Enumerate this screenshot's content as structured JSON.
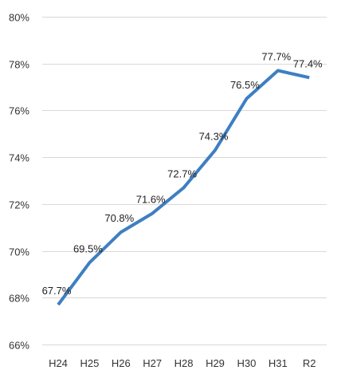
{
  "chart_data": {
    "type": "line",
    "title": "",
    "xlabel": "",
    "ylabel": "",
    "categories": [
      "H24",
      "H25",
      "H26",
      "H27",
      "H28",
      "H29",
      "H30",
      "H31",
      "R2"
    ],
    "series": [
      {
        "values": [
          67.7,
          69.5,
          70.8,
          71.6,
          72.7,
          74.3,
          76.5,
          77.7,
          77.4
        ],
        "data_labels": [
          "67.7%",
          "69.5%",
          "70.8%",
          "71.6%",
          "72.7%",
          "74.3%",
          "76.5%",
          "77.7%",
          "77.4%"
        ],
        "color": "#3e7fc1"
      }
    ],
    "ylim": [
      66,
      80
    ],
    "yticks": [
      66,
      68,
      70,
      72,
      74,
      76,
      78,
      80
    ],
    "ytick_labels": [
      "66%",
      "68%",
      "70%",
      "72%",
      "74%",
      "76%",
      "78%",
      "80%"
    ],
    "grid": true,
    "legend": "none"
  }
}
